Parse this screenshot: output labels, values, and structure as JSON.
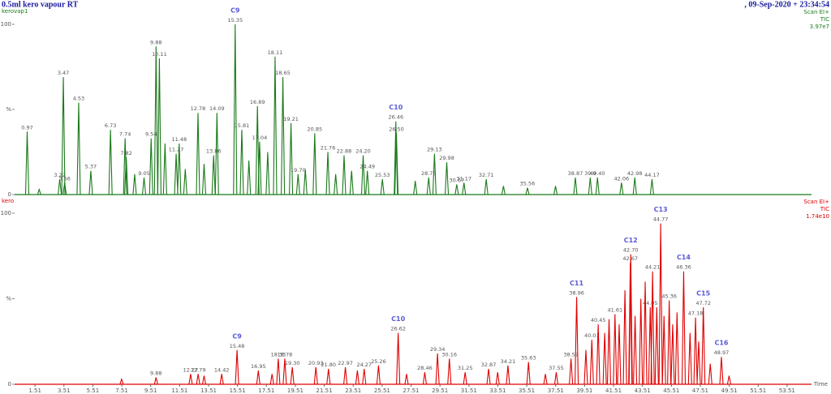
{
  "chart_data": [
    {
      "type": "chromatogram",
      "title": "0.5ml kero vapour RT",
      "timestamp": ", 09-Sep-2020 + 23:34:54",
      "sample": "kerovap1",
      "scan": "Scan EI+",
      "trace": "TIC",
      "intensity": "3.97e7",
      "color": "#1a7a1a",
      "x": [
        0.97,
        3.22,
        3.47,
        3.56,
        4.53,
        5.37,
        6.73,
        7.74,
        7.82,
        9.05,
        9.54,
        9.88,
        10.11,
        11.27,
        11.48,
        12.78,
        13.86,
        14.09,
        15.35,
        15.81,
        16.89,
        17.04,
        18.11,
        18.65,
        19.21,
        19.7,
        20.85,
        21.76,
        22.88,
        24.2,
        24.49,
        25.53,
        26.46,
        26.5,
        28.73,
        29.13,
        29.98,
        30.67,
        31.17,
        32.71,
        35.56,
        38.87,
        39.9,
        40.4,
        42.06,
        42.98,
        44.17,
        1.8,
        8.4,
        10.5,
        11.9,
        13.2,
        16.3,
        17.6,
        20.2,
        22.3,
        23.4,
        27.8,
        33.9,
        37.5
      ],
      "x_labels": [
        "0.97",
        "3.22",
        "3.47",
        "3.56",
        "4.53",
        "5.37",
        "6.73",
        "7.74",
        "7.82",
        "9.05",
        "9.54",
        "9.88",
        "10.11",
        "11.27",
        "11.48",
        "12.78",
        "13.86",
        "14.09",
        "15.35",
        "15.81",
        "16.89",
        "17.04",
        "18.11",
        "18.65",
        "19.21",
        "19.70",
        "20.85",
        "21.76",
        "22.88",
        "24.20",
        "24.49",
        "25.53",
        "26.46",
        "26.50",
        "28.73",
        "29.13",
        "29.98",
        "30.67",
        "31.17",
        "32.71",
        "35.56",
        "38.87",
        "39.9",
        "40.40",
        "42.06",
        "42.98",
        "44.17",
        null,
        null,
        null,
        null,
        null,
        null,
        null,
        null,
        null,
        null,
        null,
        null,
        null
      ],
      "values": [
        37,
        9,
        69,
        7,
        54,
        14,
        38,
        33,
        22,
        10,
        33,
        87,
        80,
        24,
        30,
        48,
        23,
        48,
        100,
        38,
        52,
        31,
        81,
        69,
        42,
        12,
        36,
        25,
        23,
        23,
        14,
        9,
        43,
        36,
        10,
        24,
        19,
        6,
        7,
        9,
        4,
        10,
        10,
        10,
        7,
        10,
        9,
        3,
        12,
        30,
        15,
        18,
        20,
        25,
        15,
        12,
        14,
        8,
        5,
        5
      ],
      "annotations": [
        {
          "text": "C9",
          "x": 15.35
        },
        {
          "text": "C10",
          "x": 26.46
        }
      ],
      "xlim": [
        0.1,
        55.2
      ],
      "ylim": [
        0,
        100
      ],
      "yticks": [
        0,
        {
          "value": 50,
          "label": "%"
        },
        100
      ]
    },
    {
      "type": "chromatogram",
      "sample": "kero",
      "scan": "Scan EI+",
      "trace": "TIC",
      "intensity": "1.74e10",
      "color": "#e00000",
      "x": [
        9.88,
        12.27,
        12.79,
        14.42,
        15.48,
        16.95,
        18.33,
        18.78,
        19.3,
        20.93,
        21.8,
        22.97,
        24.27,
        25.26,
        26.62,
        28.46,
        29.34,
        30.16,
        31.25,
        32.87,
        34.21,
        35.63,
        37.55,
        38.57,
        38.96,
        40.01,
        40.45,
        41.61,
        42.67,
        42.7,
        44.05,
        44.21,
        44.77,
        45.36,
        46.36,
        47.18,
        47.72,
        48.97,
        7.5,
        13.2,
        17.9,
        23.8,
        27.2,
        33.5,
        36.8,
        39.6,
        40.9,
        41.2,
        41.9,
        42.3,
        43.0,
        43.4,
        43.7,
        44.5,
        45.0,
        45.6,
        45.9,
        46.8,
        47.4,
        48.2,
        49.5
      ],
      "x_labels": [
        "9.88",
        "12.27",
        "12.79",
        "14.42",
        "15.48",
        "16.95",
        "18.33",
        "18.78",
        "19.30",
        "20.93",
        "21.80",
        "22.97",
        "24.27",
        "25.26",
        "26.62",
        "28.46",
        "29.34",
        "30.16",
        "31.25",
        "32.87",
        "34.21",
        "35.63",
        "37.55",
        "38.57",
        "38.96",
        "40.01",
        "40.45",
        "41.61",
        "42.67",
        "42.70",
        "44.05",
        "44.21",
        "44.77",
        "45.36",
        "46.36",
        "47.18",
        "47.72",
        "48.97",
        null,
        null,
        null,
        null,
        null,
        null,
        null,
        null,
        null,
        null,
        null,
        null,
        null,
        null,
        null,
        null,
        null,
        null,
        null,
        null,
        null,
        null,
        null
      ],
      "values": [
        4,
        6,
        6,
        6,
        20,
        8,
        15,
        15,
        10,
        10,
        9,
        10,
        9,
        11,
        30,
        7,
        18,
        15,
        7,
        9,
        11,
        13,
        7,
        15,
        51,
        26,
        35,
        41,
        71,
        76,
        45,
        66,
        94,
        49,
        66,
        39,
        45,
        16,
        3,
        5,
        6,
        8,
        6,
        7,
        6,
        20,
        30,
        38,
        35,
        55,
        40,
        50,
        60,
        45,
        40,
        35,
        42,
        30,
        25,
        12,
        5
      ],
      "annotations": [
        {
          "text": "C9",
          "x": 15.48
        },
        {
          "text": "C10",
          "x": 26.62
        },
        {
          "text": "C11",
          "x": 38.96
        },
        {
          "text": "C12",
          "x": 42.7
        },
        {
          "text": "C13",
          "x": 44.77
        },
        {
          "text": "C14",
          "x": 46.36
        },
        {
          "text": "C15",
          "x": 47.72
        },
        {
          "text": "C16",
          "x": 48.97
        }
      ],
      "xlabel": "Time",
      "xlim": [
        0.1,
        55.2
      ],
      "xticks": [
        1.51,
        3.51,
        5.51,
        7.51,
        9.51,
        11.51,
        13.51,
        15.51,
        17.51,
        19.51,
        21.51,
        23.51,
        25.51,
        27.51,
        29.51,
        31.51,
        33.51,
        35.51,
        37.51,
        39.51,
        41.51,
        43.51,
        45.51,
        47.51,
        49.51,
        51.51,
        53.51
      ],
      "ylim": [
        0,
        100
      ],
      "yticks": [
        0,
        {
          "value": 50,
          "label": "%"
        },
        100
      ]
    }
  ]
}
